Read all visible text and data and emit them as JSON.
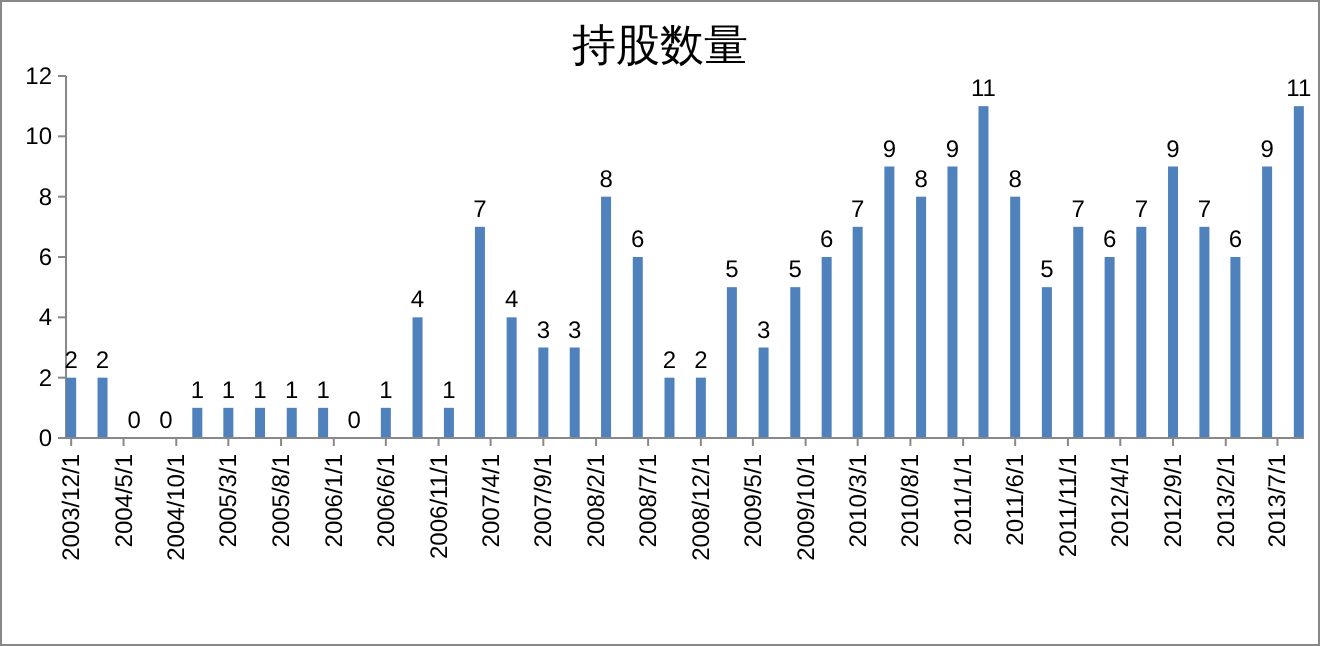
{
  "chart_data": {
    "type": "bar",
    "title": "持股数量",
    "color": "#4f81bd",
    "x": [
      "2003-12",
      "2004-03",
      "2004-06",
      "2004-09",
      "2004-12",
      "2005-03",
      "2005-06",
      "2005-09",
      "2005-12",
      "2006-03",
      "2006-06",
      "2006-09",
      "2006-12",
      "2007-03",
      "2007-06",
      "2007-09",
      "2007-12",
      "2008-03",
      "2008-06",
      "2008-09",
      "2008-12",
      "2009-03",
      "2009-06",
      "2009-09",
      "2009-12",
      "2010-03",
      "2010-06",
      "2010-09",
      "2010-12",
      "2011-03",
      "2011-06",
      "2011-09",
      "2011-12",
      "2012-03",
      "2012-06",
      "2012-09",
      "2012-12",
      "2013-03",
      "2013-06",
      "2013-09"
    ],
    "values": [
      2,
      2,
      0,
      0,
      1,
      1,
      1,
      1,
      1,
      0,
      1,
      4,
      1,
      7,
      4,
      3,
      3,
      8,
      6,
      2,
      2,
      5,
      3,
      5,
      6,
      7,
      9,
      8,
      9,
      11,
      8,
      5,
      7,
      6,
      7,
      9,
      7,
      6,
      9,
      11
    ],
    "data_labels": true,
    "ylim": [
      0,
      12
    ],
    "yticks": [
      0,
      2,
      4,
      6,
      8,
      10,
      12
    ],
    "xlim": [
      "2003-11-16",
      "2013-09-16"
    ],
    "xticks": [
      {
        "value": "2003-12-01",
        "label": "2003/12/1"
      },
      {
        "value": "2004-05-01",
        "label": "2004/5/1"
      },
      {
        "value": "2004-10-01",
        "label": "2004/10/1"
      },
      {
        "value": "2005-03-01",
        "label": "2005/3/1"
      },
      {
        "value": "2005-08-01",
        "label": "2005/8/1"
      },
      {
        "value": "2006-01-01",
        "label": "2006/1/1"
      },
      {
        "value": "2006-06-01",
        "label": "2006/6/1"
      },
      {
        "value": "2006-11-01",
        "label": "2006/11/1"
      },
      {
        "value": "2007-04-01",
        "label": "2007/4/1"
      },
      {
        "value": "2007-09-01",
        "label": "2007/9/1"
      },
      {
        "value": "2008-02-01",
        "label": "2008/2/1"
      },
      {
        "value": "2008-07-01",
        "label": "2008/7/1"
      },
      {
        "value": "2008-12-01",
        "label": "2008/12/1"
      },
      {
        "value": "2009-05-01",
        "label": "2009/5/1"
      },
      {
        "value": "2009-10-01",
        "label": "2009/10/1"
      },
      {
        "value": "2010-03-01",
        "label": "2010/3/1"
      },
      {
        "value": "2010-08-01",
        "label": "2010/8/1"
      },
      {
        "value": "2011-01-01",
        "label": "2011/1/1"
      },
      {
        "value": "2011-06-01",
        "label": "2011/6/1"
      },
      {
        "value": "2011-11-01",
        "label": "2011/11/1"
      },
      {
        "value": "2012-04-01",
        "label": "2012/4/1"
      },
      {
        "value": "2012-09-01",
        "label": "2012/9/1"
      },
      {
        "value": "2013-02-01",
        "label": "2013/2/1"
      },
      {
        "value": "2013-07-01",
        "label": "2013/7/1"
      }
    ]
  }
}
